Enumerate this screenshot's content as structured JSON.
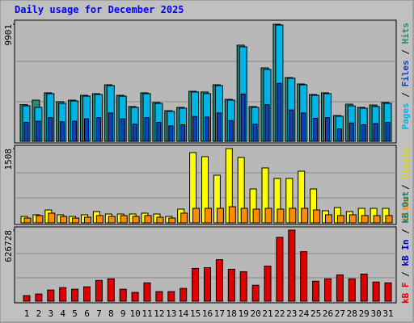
{
  "title": "Daily usage for December 2025",
  "chart_data": [
    {
      "type": "bar",
      "ylim": [
        0,
        9901
      ],
      "yticks": [
        9901
      ],
      "series": [
        {
          "name": "Hits",
          "color": "#2a8a78",
          "values": [
            3100,
            3480,
            4100,
            3350,
            3480,
            3890,
            4030,
            4780,
            3890,
            2940,
            4100,
            3280,
            2590,
            2870,
            4230,
            4170,
            4780,
            3550,
            8130,
            2940,
            6210,
            9901,
            5390,
            4850,
            3960,
            4100,
            2180,
            3140,
            2870,
            3070,
            3280
          ]
        },
        {
          "name": "Files",
          "color": "#1040c0",
          "values": [
            1600,
            1700,
            2000,
            1650,
            1700,
            1900,
            2000,
            2400,
            1900,
            1450,
            2000,
            1600,
            1300,
            1400,
            2100,
            2050,
            2400,
            1750,
            4000,
            1450,
            3100,
            4900,
            2650,
            2400,
            1950,
            2000,
            1050,
            1550,
            1400,
            1500,
            1600
          ]
        },
        {
          "name": "Pages",
          "color": "#00b4e6",
          "values": [
            3000,
            2870,
            4030,
            3210,
            3410,
            3820,
            3960,
            4710,
            3820,
            2870,
            4030,
            3210,
            2530,
            2800,
            4170,
            4030,
            4710,
            3480,
            7990,
            2870,
            6080,
            9830,
            5330,
            4780,
            3890,
            4030,
            2120,
            3000,
            2800,
            2940,
            3210
          ]
        }
      ]
    },
    {
      "type": "bar",
      "ylim": [
        0,
        1508
      ],
      "yticks": [
        1508
      ],
      "series": [
        {
          "name": "Visits",
          "color": "#ffff00",
          "values": [
            131,
            164,
            262,
            164,
            131,
            164,
            229,
            180,
            180,
            180,
            197,
            180,
            131,
            279,
            1426,
            1344,
            967,
            1508,
            1328,
            688,
            1115,
            902,
            902,
            1049,
            688,
            246,
            311,
            229,
            295,
            295,
            295
          ]
        },
        {
          "name": "Sites",
          "color": "#ff8c00",
          "values": [
            98,
            148,
            197,
            131,
            98,
            115,
            148,
            131,
            148,
            131,
            148,
            115,
            98,
            197,
            295,
            295,
            295,
            328,
            295,
            279,
            295,
            279,
            295,
            295,
            262,
            164,
            148,
            164,
            148,
            148,
            148
          ]
        }
      ]
    },
    {
      "type": "bar",
      "ylim": [
        0,
        626728
      ],
      "yticks": [
        626728
      ],
      "categories": [
        "1",
        "2",
        "3",
        "4",
        "5",
        "6",
        "7",
        "8",
        "9",
        "10",
        "11",
        "12",
        "13",
        "14",
        "15",
        "16",
        "17",
        "18",
        "19",
        "20",
        "21",
        "22",
        "23",
        "24",
        "25",
        "26",
        "27",
        "28",
        "29",
        "30",
        "31"
      ],
      "weekend_days": [
        "6",
        "7",
        "13",
        "14",
        "20",
        "21",
        "27",
        "28"
      ],
      "weekend_color": "#00805c",
      "series": [
        {
          "name": "kB F",
          "color": "#e00000",
          "values": [
            49293,
            63377,
            98590,
            119710,
            105630,
            126750,
            183090,
            197170,
            105630,
            77460,
            161960,
            84500,
            84500,
            112670,
            288720,
            295760,
            366180,
            281680,
            260550,
            140840,
            309850,
            563350,
            626728,
            436600,
            176050,
            197170,
            232380,
            197170,
            239420,
            169010,
            161960
          ]
        }
      ],
      "legend_only": [
        {
          "name": "kB In",
          "color": "#0000c0"
        },
        {
          "name": "kB Out",
          "color": "#008080"
        }
      ]
    }
  ]
}
